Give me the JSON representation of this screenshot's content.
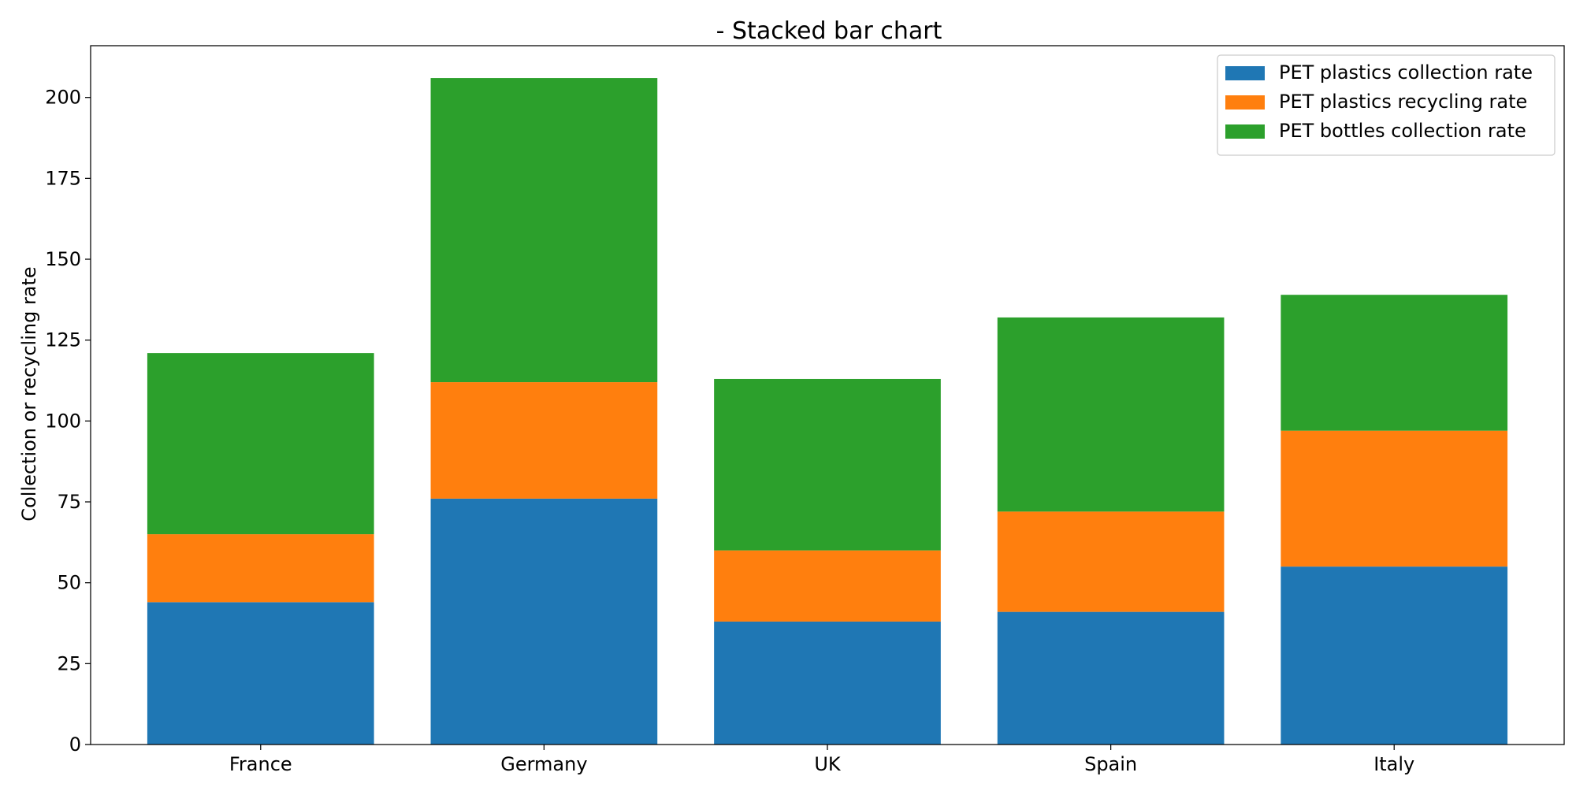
{
  "chart_data": {
    "type": "bar",
    "stacked": true,
    "title": "- Stacked bar chart",
    "xlabel": "",
    "ylabel": "Collection or recycling rate",
    "categories": [
      "France",
      "Germany",
      "UK",
      "Spain",
      "Italy"
    ],
    "series": [
      {
        "name": "PET plastics collection rate",
        "color": "#1f77b4",
        "values": [
          44,
          76,
          38,
          41,
          55
        ]
      },
      {
        "name": "PET plastics recycling rate",
        "color": "#ff7f0e",
        "values": [
          21,
          36,
          22,
          31,
          42
        ]
      },
      {
        "name": "PET bottles collection rate",
        "color": "#2ca02c",
        "values": [
          56,
          94,
          53,
          60,
          42
        ]
      }
    ],
    "ylim": [
      0,
      216
    ],
    "yticks": [
      0,
      25,
      50,
      75,
      100,
      125,
      150,
      175,
      200
    ],
    "grid": false,
    "legend_position": "top-right"
  }
}
